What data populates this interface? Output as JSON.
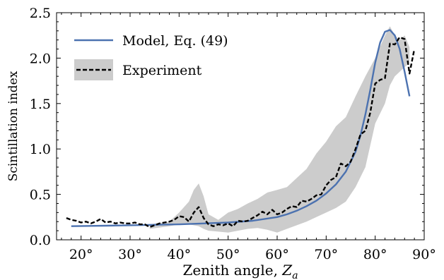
{
  "chart_data": {
    "type": "line",
    "xlabel": "Zenith angle, ",
    "xlabel_symbol": "Z",
    "xlabel_subscript": "a",
    "ylabel": "Scintillation index",
    "xlim": [
      15,
      90
    ],
    "ylim": [
      0,
      2.5
    ],
    "x_ticks": [
      20,
      30,
      40,
      50,
      60,
      70,
      80,
      90
    ],
    "x_tick_labels": [
      "20°",
      "30°",
      "40°",
      "50°",
      "60°",
      "70°",
      "80°",
      "90°"
    ],
    "y_ticks": [
      0,
      0.5,
      1.0,
      1.5,
      2.0,
      2.5
    ],
    "y_tick_labels": [
      "0.0",
      "0.5",
      "1.0",
      "1.5",
      "2.0",
      "2.5"
    ],
    "grid": false,
    "legend_position": "top-left",
    "series": [
      {
        "name": "Model, Eq. (49)",
        "color": "#4c72b0",
        "style": "solid",
        "x": [
          18,
          25,
          30,
          35,
          40,
          45,
          50,
          55,
          60,
          62,
          64,
          66,
          68,
          70,
          72,
          74,
          76,
          77,
          78,
          79,
          80,
          81,
          82,
          83,
          84,
          85,
          86,
          87
        ],
        "y": [
          0.15,
          0.155,
          0.16,
          0.165,
          0.17,
          0.18,
          0.19,
          0.21,
          0.25,
          0.28,
          0.32,
          0.37,
          0.43,
          0.51,
          0.61,
          0.75,
          0.97,
          1.15,
          1.38,
          1.65,
          1.95,
          2.17,
          2.29,
          2.31,
          2.25,
          2.1,
          1.85,
          1.58
        ]
      },
      {
        "name": "Experiment",
        "color": "#000000",
        "style": "dashed",
        "x": [
          17,
          18,
          19,
          20,
          21,
          22,
          23,
          24,
          25,
          26,
          27,
          28,
          29,
          30,
          31,
          32,
          33,
          34,
          35,
          36,
          37,
          38,
          39,
          40,
          41,
          42,
          43,
          44,
          45,
          46,
          47,
          48,
          49,
          50,
          51,
          52,
          53,
          54,
          55,
          56,
          57,
          58,
          59,
          60,
          61,
          62,
          63,
          64,
          65,
          66,
          67,
          68,
          69,
          70,
          71,
          72,
          73,
          74,
          75,
          76,
          77,
          78,
          79,
          80,
          81,
          82,
          83,
          84,
          85,
          86,
          87,
          88
        ],
        "y": [
          0.24,
          0.22,
          0.21,
          0.19,
          0.2,
          0.18,
          0.2,
          0.23,
          0.19,
          0.2,
          0.18,
          0.19,
          0.18,
          0.18,
          0.19,
          0.17,
          0.17,
          0.14,
          0.16,
          0.18,
          0.19,
          0.2,
          0.22,
          0.26,
          0.25,
          0.2,
          0.3,
          0.36,
          0.24,
          0.17,
          0.15,
          0.17,
          0.16,
          0.18,
          0.15,
          0.21,
          0.2,
          0.21,
          0.24,
          0.27,
          0.31,
          0.28,
          0.33,
          0.28,
          0.3,
          0.34,
          0.37,
          0.36,
          0.43,
          0.42,
          0.45,
          0.49,
          0.5,
          0.6,
          0.66,
          0.69,
          0.84,
          0.81,
          0.86,
          1.0,
          1.16,
          1.2,
          1.4,
          1.72,
          1.76,
          1.78,
          2.16,
          2.15,
          2.23,
          2.21,
          1.83,
          2.1
        ]
      },
      {
        "name": "Experiment band",
        "color": "#cccccc",
        "style": "band",
        "x": [
          34,
          38,
          40,
          42,
          43,
          44,
          45,
          46,
          48,
          50,
          52,
          54,
          56,
          58,
          60,
          62,
          64,
          66,
          68,
          70,
          72,
          74,
          76,
          78,
          80,
          82,
          83,
          84,
          85,
          86,
          87
        ],
        "y_upper": [
          0.17,
          0.2,
          0.3,
          0.42,
          0.55,
          0.62,
          0.48,
          0.28,
          0.22,
          0.3,
          0.34,
          0.4,
          0.45,
          0.52,
          0.55,
          0.58,
          0.68,
          0.78,
          0.95,
          1.08,
          1.25,
          1.35,
          1.58,
          1.8,
          2.0,
          2.25,
          2.35,
          2.25,
          2.2,
          2.25,
          2.12
        ],
        "y_lower": [
          0.12,
          0.15,
          0.17,
          0.17,
          0.16,
          0.15,
          0.12,
          0.1,
          0.09,
          0.08,
          0.1,
          0.12,
          0.13,
          0.11,
          0.08,
          0.12,
          0.16,
          0.2,
          0.25,
          0.3,
          0.35,
          0.42,
          0.58,
          0.8,
          1.28,
          1.5,
          1.7,
          1.8,
          1.85,
          1.9,
          1.95
        ]
      }
    ]
  }
}
